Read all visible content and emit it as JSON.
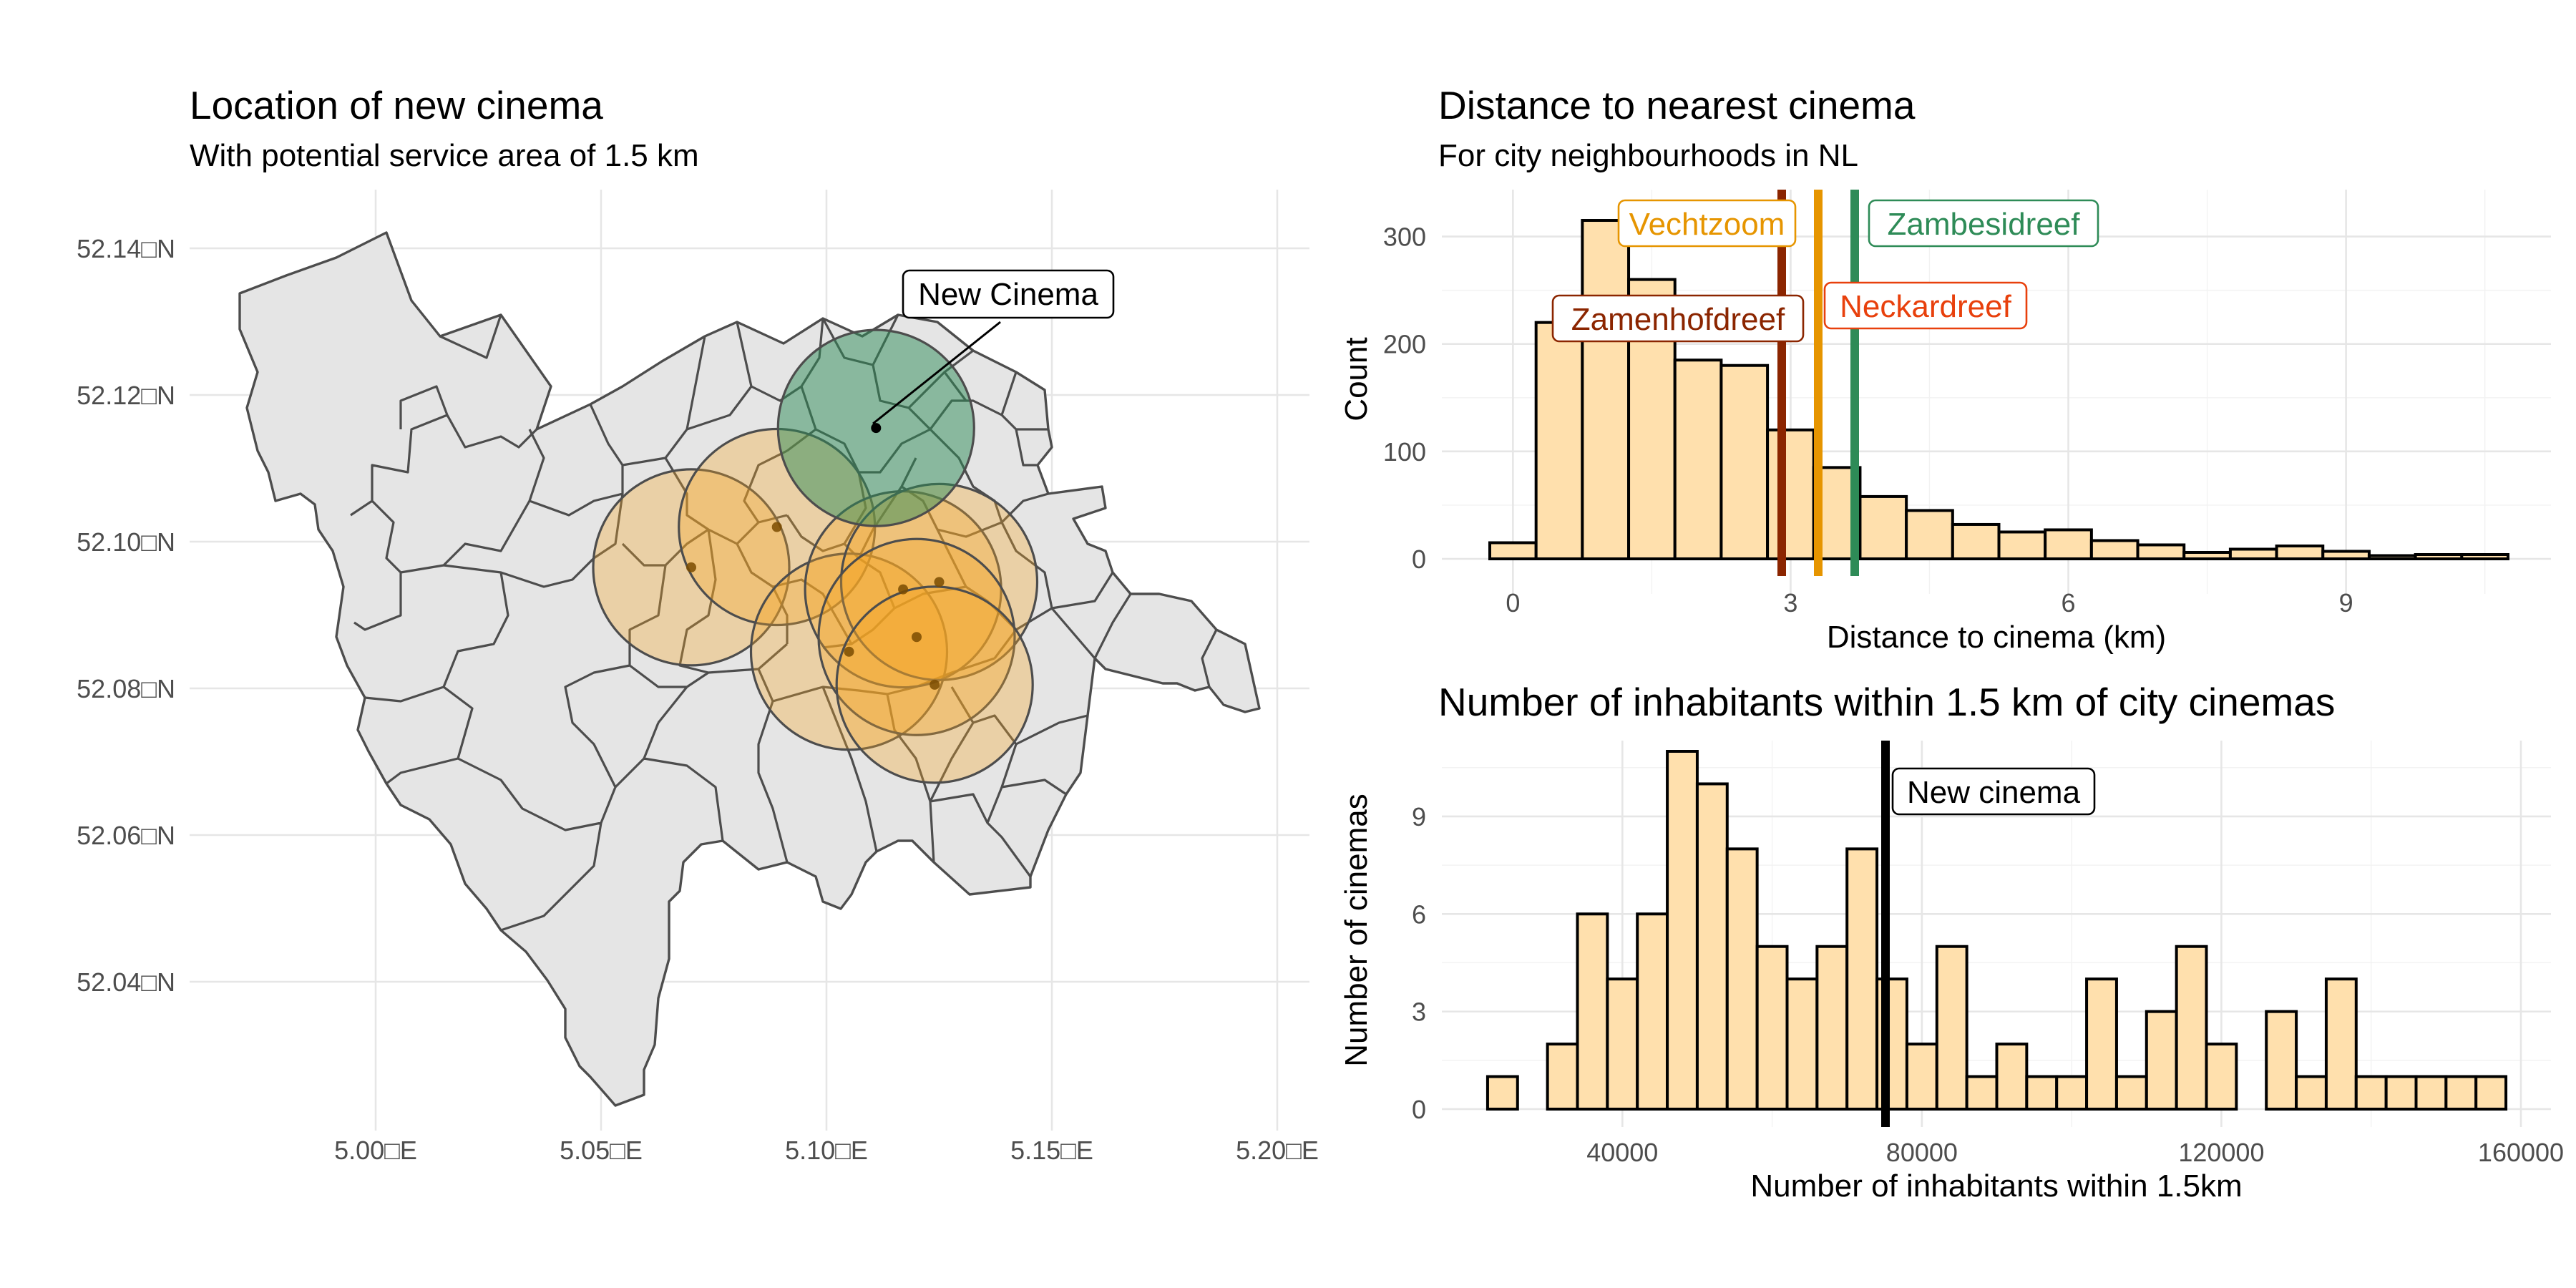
{
  "map": {
    "title": "Location of new cinema",
    "subtitle": "With potential service area of 1.5 km",
    "x_ticks": [
      "5.00□E",
      "5.05□E",
      "5.10□E",
      "5.15□E",
      "5.20□E"
    ],
    "y_ticks": [
      "52.14□N",
      "52.12□N",
      "52.10□N",
      "52.08□N",
      "52.06□N",
      "52.04□N"
    ],
    "annotation": "New Cinema"
  },
  "distance": {
    "title": "Distance to nearest cinema",
    "subtitle": "For city neighbourhoods in NL"
  },
  "inhabitants": {
    "title": "Number of inhabitants within 1.5 km of city cinemas"
  },
  "colors": {
    "new_cinema": "#2e8b57",
    "existing_cinema": "#f5a623",
    "bar_fill": "#ffe0ad",
    "zamenhofdreef": "#8b2500",
    "vechtzoom": "#e69500",
    "neckardreef": "#e8400c",
    "zambesidreef": "#2e8b57"
  },
  "chart_data": [
    {
      "type": "map",
      "title": "Location of new cinema",
      "subtitle": "With potential service area of 1.5 km",
      "x_ticks": [
        5.0,
        5.05,
        5.1,
        5.15,
        5.2
      ],
      "y_ticks": [
        52.14,
        52.12,
        52.1,
        52.08,
        52.06,
        52.04
      ],
      "service_radius_km": 1.5,
      "new_cinema": {
        "label": "New Cinema",
        "lon": 5.111,
        "lat": 52.1155
      },
      "existing_cinemas": [
        {
          "lon": 5.07,
          "lat": 52.0965
        },
        {
          "lon": 5.089,
          "lat": 52.102
        },
        {
          "lon": 5.105,
          "lat": 52.085
        },
        {
          "lon": 5.117,
          "lat": 52.0935
        },
        {
          "lon": 5.125,
          "lat": 52.0945
        },
        {
          "lon": 5.12,
          "lat": 52.087
        },
        {
          "lon": 5.124,
          "lat": 52.0805
        }
      ],
      "grid": true
    },
    {
      "type": "bar",
      "title": "Distance to nearest cinema",
      "subtitle": "For city neighbourhoods in NL",
      "xlabel": "Distance to cinema (km)",
      "ylabel": "Count",
      "binwidth": 0.5,
      "bin_centers": [
        0,
        0.5,
        1,
        1.5,
        2,
        2.5,
        3,
        3.5,
        4,
        4.5,
        5,
        5.5,
        6,
        6.5,
        7,
        7.5,
        8,
        8.5,
        9,
        9.5,
        10,
        10.5
      ],
      "values": [
        15,
        220,
        315,
        260,
        185,
        180,
        120,
        85,
        58,
        45,
        32,
        25,
        27,
        17,
        13,
        6,
        9,
        12,
        7,
        3,
        4,
        4
      ],
      "x_ticks": [
        0,
        3,
        6,
        9
      ],
      "y_ticks": [
        0,
        100,
        200,
        300
      ],
      "xlim": [
        -0.25,
        10.75
      ],
      "ylim": [
        0,
        325
      ],
      "vlines": [
        {
          "label": "Zamenhofdreef",
          "x": 2.9
        },
        {
          "label": "Vechtzoom",
          "x": 3.3
        },
        {
          "label": "Neckardreef",
          "x": 3.3
        },
        {
          "label": "Zambesidreef",
          "x": 3.7
        }
      ],
      "grid": true
    },
    {
      "type": "bar",
      "title": "Number of inhabitants within 1.5 km of city cinemas",
      "xlabel": "Number of inhabitants within 1.5km",
      "ylabel": "Number of cinemas",
      "binwidth": 4000,
      "bin_centers": [
        24000,
        32000,
        36000,
        40000,
        44000,
        48000,
        52000,
        56000,
        60000,
        64000,
        68000,
        72000,
        76000,
        80000,
        84000,
        88000,
        92000,
        96000,
        100000,
        104000,
        108000,
        112000,
        116000,
        120000,
        124000,
        128000,
        132000,
        136000,
        140000,
        144000,
        148000,
        152000,
        156000
      ],
      "values": [
        1,
        2,
        6,
        4,
        6,
        11,
        10,
        8,
        5,
        4,
        5,
        8,
        4,
        2,
        5,
        1,
        2,
        1,
        1,
        4,
        1,
        3,
        5,
        2,
        0,
        3,
        1,
        4,
        1,
        1,
        1,
        1,
        1
      ],
      "x_ticks": [
        40000,
        80000,
        120000,
        160000
      ],
      "y_ticks": [
        0,
        3,
        6,
        9
      ],
      "xlim": [
        20000,
        160000
      ],
      "ylim": [
        0,
        11
      ],
      "vlines": [
        {
          "label": "New cinema",
          "x": 74000
        }
      ],
      "grid": true
    }
  ]
}
